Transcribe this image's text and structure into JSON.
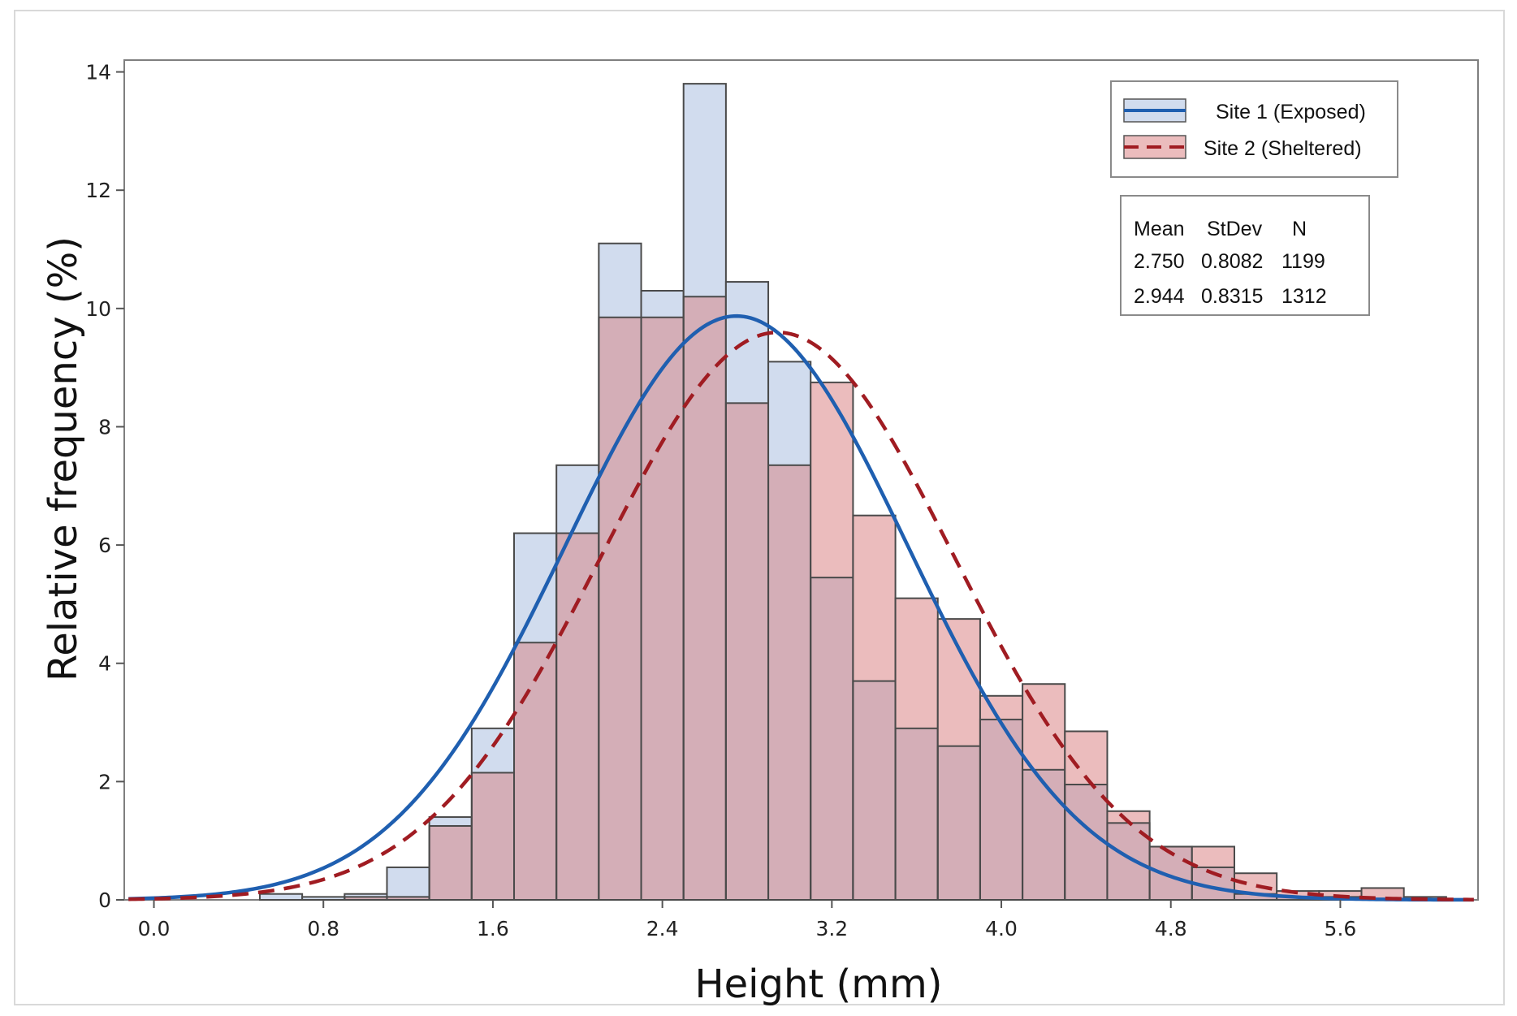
{
  "chart_data": {
    "type": "histogram",
    "title": "",
    "xlabel": "Height (mm)",
    "ylabel": "Relative frequency (%)",
    "xlim": [
      -0.14,
      6.25
    ],
    "ylim": [
      0,
      14.2
    ],
    "x_ticks": [
      0.0,
      0.8,
      1.6,
      2.4,
      3.2,
      4.0,
      4.8,
      5.6
    ],
    "x_tick_labels": [
      "0.0",
      "0.8",
      "1.6",
      "2.4",
      "3.2",
      "4.0",
      "4.8",
      "5.6"
    ],
    "y_ticks": [
      0,
      2,
      4,
      6,
      8,
      10,
      12,
      14
    ],
    "y_tick_labels": [
      "0",
      "2",
      "4",
      "6",
      "8",
      "10",
      "12",
      "14"
    ],
    "bin_width": 0.2,
    "bin_starts": [
      0.5,
      0.7,
      0.9,
      1.1,
      1.3,
      1.5,
      1.7,
      1.9,
      2.1,
      2.3,
      2.5,
      2.7,
      2.9,
      3.1,
      3.3,
      3.5,
      3.7,
      3.9,
      4.1,
      4.3,
      4.5,
      4.7,
      4.9,
      5.1,
      5.3,
      5.5,
      5.7,
      5.9
    ],
    "series": [
      {
        "name": "Site 1 (Exposed)",
        "values": [
          0.1,
          0.05,
          0.1,
          0.55,
          1.4,
          2.9,
          6.2,
          7.35,
          11.1,
          10.3,
          13.8,
          10.45,
          9.1,
          5.45,
          3.7,
          2.9,
          2.6,
          3.05,
          2.2,
          1.95,
          1.3,
          0.9,
          0.55,
          0.1,
          0.05,
          0.05,
          0,
          0.05
        ],
        "fill_color": "#d1dcee",
        "curve": {
          "mean": 2.75,
          "stdev": 0.8082,
          "n": 1199,
          "color": "#1f5fb0",
          "style": "solid"
        }
      },
      {
        "name": "Site 2 (Sheltered)",
        "values": [
          0,
          0,
          0.05,
          0.05,
          1.25,
          2.15,
          4.35,
          6.2,
          9.85,
          9.85,
          10.2,
          8.4,
          7.35,
          8.75,
          6.5,
          5.1,
          4.75,
          3.45,
          3.65,
          2.85,
          1.5,
          0.9,
          0.9,
          0.45,
          0.15,
          0.15,
          0.2,
          0
        ],
        "fill_color": "#ebbcbd",
        "curve": {
          "mean": 2.944,
          "stdev": 0.8315,
          "n": 1312,
          "color": "#a01c22",
          "style": "dashed"
        }
      }
    ],
    "overlap_color": "#d4aeb7",
    "legend_position": "top-right",
    "stats_table": {
      "headers": [
        "Mean",
        "StDev",
        "N"
      ],
      "rows": [
        [
          "2.750",
          "0.8082",
          "1199"
        ],
        [
          "2.944",
          "0.8315",
          "1312"
        ]
      ]
    }
  }
}
